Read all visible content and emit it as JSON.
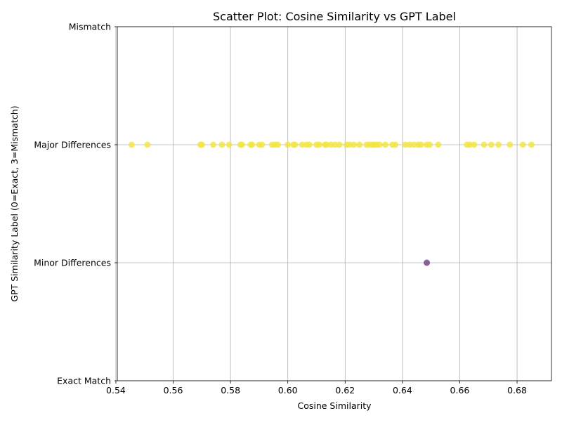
{
  "chart_data": {
    "type": "scatter",
    "title": "Scatter Plot: Cosine Similarity vs GPT Label",
    "xlabel": "Cosine Similarity",
    "ylabel": "GPT Similarity Label (0=Exact, 3=Mismatch)",
    "xlim": [
      0.5405,
      0.692
    ],
    "ylim": [
      0,
      3
    ],
    "x_ticks": [
      0.54,
      0.56,
      0.58,
      0.6,
      0.62,
      0.64,
      0.66,
      0.68
    ],
    "x_tick_labels": [
      "0.54",
      "0.56",
      "0.58",
      "0.60",
      "0.62",
      "0.64",
      "0.66",
      "0.68"
    ],
    "y_ticks": [
      0,
      1,
      2,
      3
    ],
    "y_tick_labels": [
      "Exact Match",
      "Minor Differences",
      "Major Differences",
      "Mismatch"
    ],
    "grid": true,
    "colors": {
      "major": "#f3e53f",
      "minor": "#6a3a82"
    },
    "series": [
      {
        "label_value": 2,
        "color_key": "major",
        "x": [
          0.5455,
          0.551,
          0.5695,
          0.57,
          0.574,
          0.577,
          0.5795,
          0.5835,
          0.584,
          0.587,
          0.5875,
          0.59,
          0.591,
          0.5945,
          0.5955,
          0.5965,
          0.6,
          0.602,
          0.6025,
          0.605,
          0.6065,
          0.6075,
          0.61,
          0.611,
          0.613,
          0.6135,
          0.615,
          0.6165,
          0.618,
          0.6205,
          0.6215,
          0.623,
          0.625,
          0.6275,
          0.6285,
          0.6295,
          0.63,
          0.631,
          0.632,
          0.634,
          0.6365,
          0.6375,
          0.641,
          0.6425,
          0.644,
          0.6455,
          0.6465,
          0.6485,
          0.6495,
          0.6525,
          0.6625,
          0.6635,
          0.665,
          0.6685,
          0.671,
          0.6735,
          0.6775,
          0.682,
          0.685
        ],
        "y": [
          2,
          2,
          2,
          2,
          2,
          2,
          2,
          2,
          2,
          2,
          2,
          2,
          2,
          2,
          2,
          2,
          2,
          2,
          2,
          2,
          2,
          2,
          2,
          2,
          2,
          2,
          2,
          2,
          2,
          2,
          2,
          2,
          2,
          2,
          2,
          2,
          2,
          2,
          2,
          2,
          2,
          2,
          2,
          2,
          2,
          2,
          2,
          2,
          2,
          2,
          2,
          2,
          2,
          2,
          2,
          2,
          2,
          2,
          2
        ]
      },
      {
        "label_value": 1,
        "color_key": "minor",
        "x": [
          0.6485
        ],
        "y": [
          1
        ]
      }
    ]
  }
}
